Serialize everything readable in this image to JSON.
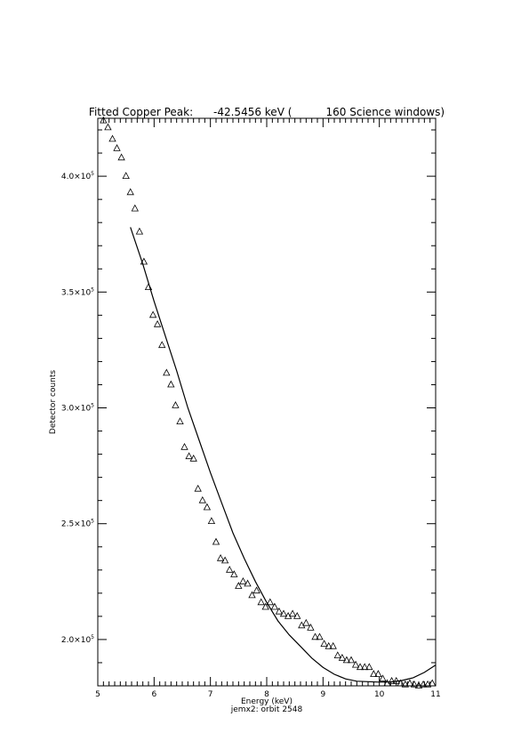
{
  "chart_data": {
    "type": "scatter",
    "title": "Fitted Copper Peak:      -42.5456 keV (          160 Science windows)",
    "xlabel": "Energy (keV)",
    "subtitle": "jemx2: orbit 2548",
    "ylabel": "Detector counts",
    "xlim": [
      5,
      11
    ],
    "ylim": [
      180000,
      425000
    ],
    "x_ticks": [
      "5",
      "6",
      "7",
      "8",
      "9",
      "10",
      "11"
    ],
    "y_ticks": [
      {
        "value": 200000,
        "mantissa": "2.0",
        "exponent": "5"
      },
      {
        "value": 250000,
        "mantissa": "2.5",
        "exponent": "5"
      },
      {
        "value": 300000,
        "mantissa": "3.0",
        "exponent": "5"
      },
      {
        "value": 350000,
        "mantissa": "3.5",
        "exponent": "5"
      },
      {
        "value": 400000,
        "mantissa": "4.0",
        "exponent": "5"
      }
    ],
    "y_tick_template": "×10",
    "series": [
      {
        "marker": "triangle",
        "x": [
          5.1,
          5.18,
          5.26,
          5.34,
          5.42,
          5.5,
          5.58,
          5.66,
          5.74,
          5.82,
          5.9,
          5.98,
          6.06,
          6.14,
          6.22,
          6.3,
          6.38,
          6.46,
          6.54,
          6.62,
          6.7,
          6.78,
          6.86,
          6.94,
          7.02,
          7.1,
          7.18,
          7.26,
          7.34,
          7.42,
          7.5,
          7.58,
          7.66,
          7.74,
          7.82,
          7.9,
          7.98,
          8.06,
          8.14,
          8.22,
          8.3,
          8.38,
          8.46,
          8.54,
          8.62,
          8.7,
          8.78,
          8.86,
          8.94,
          9.02,
          9.1,
          9.18,
          9.26,
          9.34,
          9.42,
          9.5,
          9.58,
          9.66,
          9.74,
          9.82,
          9.9,
          9.98,
          10.06,
          10.14,
          10.22,
          10.3,
          10.38,
          10.46,
          10.54,
          10.62,
          10.7,
          10.78,
          10.86,
          10.94
        ],
        "y": [
          424000,
          421000,
          416000,
          412000,
          408000,
          400000,
          393000,
          386000,
          376000,
          363000,
          352000,
          340000,
          336000,
          327000,
          315000,
          310000,
          301000,
          294000,
          283000,
          279000,
          278000,
          265000,
          260000,
          257000,
          251000,
          242000,
          235000,
          234000,
          230000,
          228000,
          223000,
          225000,
          224000,
          219000,
          221000,
          216000,
          214000,
          216000,
          214000,
          212000,
          211000,
          210000,
          211000,
          210000,
          206000,
          207000,
          205000,
          201000,
          201000,
          198000,
          197000,
          197000,
          193000,
          192000,
          191000,
          191000,
          189000,
          188000,
          188000,
          188000,
          185000,
          185000,
          183000,
          181000,
          182000,
          182000,
          181000,
          180500,
          181000,
          180500,
          180000,
          180500,
          180500,
          181000
        ]
      },
      {
        "line": true,
        "x": [
          5.58,
          5.8,
          6.0,
          6.2,
          6.4,
          6.6,
          6.8,
          7.0,
          7.2,
          7.4,
          7.6,
          7.8,
          8.0,
          8.2,
          8.4,
          8.6,
          8.8,
          9.0,
          9.2,
          9.4,
          9.6,
          9.8,
          10.0,
          10.2,
          10.4,
          10.6,
          10.8,
          11.0
        ],
        "y": [
          378000,
          362000,
          346000,
          331000,
          316000,
          300000,
          286000,
          272000,
          259000,
          246000,
          235000,
          225000,
          216000,
          208000,
          202000,
          197000,
          192000,
          188000,
          185000,
          183000,
          182000,
          181800,
          181600,
          181700,
          182300,
          183500,
          185800,
          189000
        ]
      }
    ],
    "grid": false,
    "legend": false
  }
}
